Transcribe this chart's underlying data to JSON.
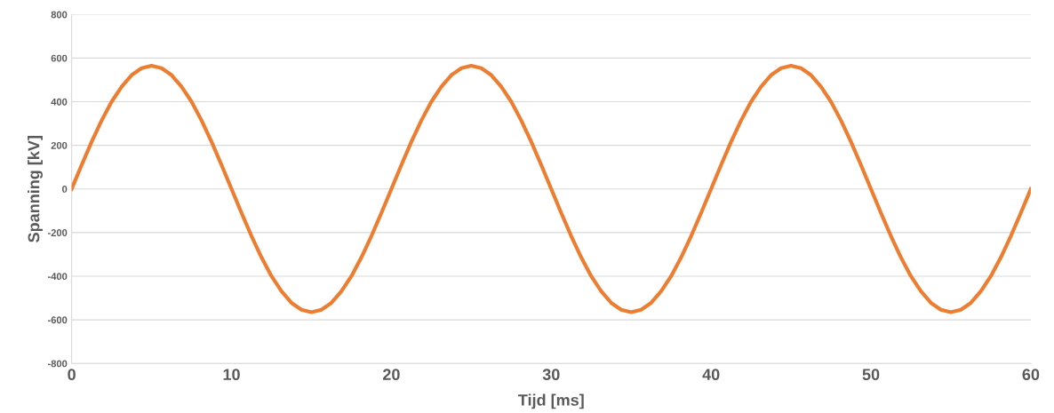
{
  "chart_data": {
    "type": "line",
    "xlabel": "Tijd [ms]",
    "ylabel": "Spanning [kV]",
    "x": [
      0,
      0.625,
      1.25,
      1.875,
      2.5,
      3.125,
      3.75,
      4.375,
      5,
      5.625,
      6.25,
      6.875,
      7.5,
      8.125,
      8.75,
      9.375,
      10,
      10.625,
      11.25,
      11.875,
      12.5,
      13.125,
      13.75,
      14.375,
      15,
      15.625,
      16.25,
      16.875,
      17.5,
      18.125,
      18.75,
      19.375,
      20,
      20.625,
      21.25,
      21.875,
      22.5,
      23.125,
      23.75,
      24.375,
      25,
      25.625,
      26.25,
      26.875,
      27.5,
      28.125,
      28.75,
      29.375,
      30,
      30.625,
      31.25,
      31.875,
      32.5,
      33.125,
      33.75,
      34.375,
      35,
      35.625,
      36.25,
      36.875,
      37.5,
      38.125,
      38.75,
      39.375,
      40,
      40.625,
      41.25,
      41.875,
      42.5,
      43.125,
      43.75,
      44.375,
      45,
      45.625,
      46.25,
      46.875,
      47.5,
      48.125,
      48.75,
      49.375,
      50,
      50.625,
      51.25,
      51.875,
      52.5,
      53.125,
      53.75,
      54.375,
      55,
      55.625,
      56.25,
      56.875,
      57.5,
      58.125,
      58.75,
      59.375,
      60
    ],
    "series": [
      {
        "color": "#ed7d31",
        "values": [
          0,
          110,
          216,
          314,
          400,
          469,
          522,
          554,
          565,
          554,
          522,
          469,
          400,
          314,
          216,
          110,
          0,
          -110,
          -216,
          -314,
          -400,
          -469,
          -522,
          -554,
          -565,
          -554,
          -522,
          -469,
          -400,
          -314,
          -216,
          -110,
          0,
          110,
          216,
          314,
          400,
          469,
          522,
          554,
          565,
          554,
          522,
          469,
          400,
          314,
          216,
          110,
          0,
          -110,
          -216,
          -314,
          -400,
          -469,
          -522,
          -554,
          -565,
          -554,
          -522,
          -469,
          -400,
          -314,
          -216,
          -110,
          0,
          110,
          216,
          314,
          400,
          469,
          522,
          554,
          565,
          554,
          522,
          469,
          400,
          314,
          216,
          110,
          0,
          -110,
          -216,
          -314,
          -400,
          -469,
          -522,
          -554,
          -565,
          -554,
          -522,
          -469,
          -400,
          -314,
          -216,
          -110,
          0
        ]
      }
    ],
    "xlim": [
      0,
      60
    ],
    "xticks": [
      0,
      10,
      20,
      30,
      40,
      50,
      60
    ],
    "ylim": [
      -800,
      800
    ],
    "yticks": [
      -800,
      -600,
      -400,
      -200,
      0,
      200,
      400,
      600,
      800
    ],
    "grid": "y",
    "line_style": "solid",
    "marker": "none"
  }
}
